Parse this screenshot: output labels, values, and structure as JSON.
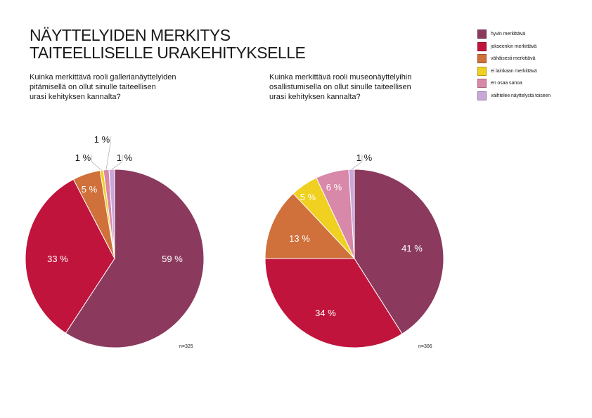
{
  "title": {
    "line1": "NÄYTTELYIDEN MERKITYS",
    "line2": "TAITEELLISELLE URAKEHITYKSELLE"
  },
  "legend": [
    {
      "label": "hyvin merkittävä",
      "color": "#8b3a5e"
    },
    {
      "label": "jokseenkin merkittävä",
      "color": "#c0143c"
    },
    {
      "label": "vähäisesti merkittävä",
      "color": "#d0703a"
    },
    {
      "label": "ei lainkaan merkittävä",
      "color": "#f0d020"
    },
    {
      "label": "en osaa sanoa",
      "color": "#d888a8"
    },
    {
      "label": "vaihtelee näyttelystä toiseen",
      "color": "#c8a8d8"
    }
  ],
  "chart_data": [
    {
      "type": "pie",
      "title": "Kuinka merkittävä rooli gallerianäyttelyiden pitämisellä on ollut sinulle taiteellisen urasi kehityksen kannalta?",
      "title_lines": [
        "Kuinka merkittävä rooli gallerianäyttelyiden",
        "pitämisellä on ollut sinulle taiteellisen",
        "urasi kehityksen kannalta?"
      ],
      "categories": [
        "hyvin merkittävä",
        "jokseenkin merkittävä",
        "vähäisesti merkittävä",
        "ei lainkaan merkittävä",
        "en osaa sanoa",
        "vaihtelee näyttelystä toiseen"
      ],
      "values": [
        59,
        33,
        5,
        0.6,
        1,
        1
      ],
      "value_labels": [
        "59 %",
        "33 %",
        "5 %",
        "1 %",
        "1 %",
        "1 %"
      ],
      "n_label": "n=325"
    },
    {
      "type": "pie",
      "title": "Kuinka merkittävä rooli museonäyttelyihin osallistumisella on ollut sinulle taiteellisen urasi kehityksen kannalta?",
      "title_lines": [
        "Kuinka merkittävä rooli museonäyttelyihin",
        "osallistumisella on ollut sinulle taiteellisen",
        "urasi kehityksen kannalta?"
      ],
      "categories": [
        "hyvin merkittävä",
        "jokseenkin merkittävä",
        "vähäisesti merkittävä",
        "ei lainkaan merkittävä",
        "en osaa sanoa",
        "vaihtelee näyttelystä toiseen"
      ],
      "values": [
        41,
        34,
        13,
        5,
        6,
        1
      ],
      "value_labels": [
        "41 %",
        "34 %",
        "13 %",
        "5 %",
        "6 %",
        "1 %"
      ],
      "n_label": "n=306"
    }
  ]
}
